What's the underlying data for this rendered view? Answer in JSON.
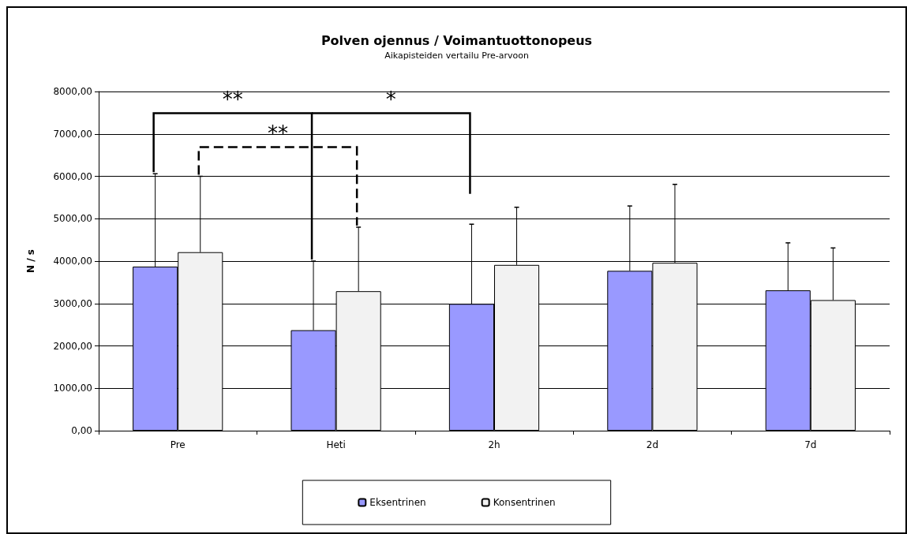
{
  "chart_data": {
    "type": "bar",
    "title": "Polven ojennus / Voimantuottonopeus",
    "subtitle": "Aikapisteiden vertailu Pre-arvoon",
    "ylabel": "N / s",
    "categories": [
      "Pre",
      "Heti",
      "2h",
      "2d",
      "7d"
    ],
    "series": [
      {
        "name": "Eksentrinen",
        "color": "#9999ff",
        "values": [
          3870,
          2370,
          2990,
          3770,
          3310
        ],
        "errors": [
          [
            3870,
            6060
          ],
          [
            2370,
            4000
          ],
          [
            2990,
            4870
          ],
          [
            3770,
            5300
          ],
          [
            3310,
            4430
          ]
        ]
      },
      {
        "name": "Konsentrinen",
        "color": "#f2f2f2",
        "values": [
          4210,
          3290,
          3910,
          3960,
          3080
        ],
        "errors": [
          [
            4210,
            6000
          ],
          [
            3290,
            4800
          ],
          [
            3910,
            5270
          ],
          [
            3960,
            5810
          ],
          [
            3080,
            4310
          ]
        ]
      }
    ],
    "ylim": [
      0,
      8000
    ],
    "yticks": [
      {
        "value": 0,
        "label": "0,00"
      },
      {
        "value": 1000,
        "label": "1000,00"
      },
      {
        "value": 2000,
        "label": "2000,00"
      },
      {
        "value": 3000,
        "label": "3000,00"
      },
      {
        "value": 4000,
        "label": "4000,00"
      },
      {
        "value": 5000,
        "label": "5000,00"
      },
      {
        "value": 6000,
        "label": "6000,00"
      },
      {
        "value": 7000,
        "label": "7000,00"
      },
      {
        "value": 8000,
        "label": "8000,00"
      }
    ],
    "annotations": [
      "**",
      "*",
      "**"
    ],
    "grid": "y",
    "legend": "bottom"
  }
}
